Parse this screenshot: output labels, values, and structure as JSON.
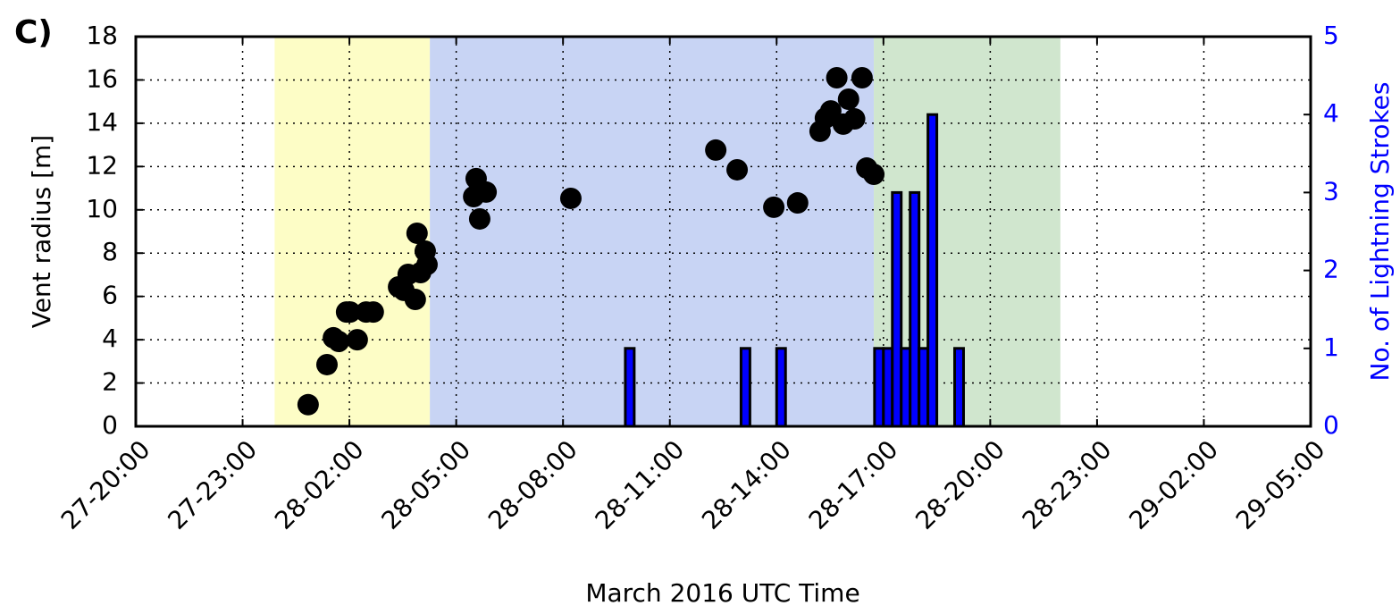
{
  "chart_data": {
    "type": "scatter",
    "panel_label": "C)",
    "xlabel": "March 2016 UTC Time",
    "ylabel": "Vent radius [m]",
    "y2label": "No. of Lightning Strokes",
    "xlim": [
      20,
      53
    ],
    "xticks": [
      {
        "value": 20,
        "label": "27-20:00"
      },
      {
        "value": 23,
        "label": "27-23:00"
      },
      {
        "value": 26,
        "label": "28-02:00"
      },
      {
        "value": 29,
        "label": "28-05:00"
      },
      {
        "value": 32,
        "label": "28-08:00"
      },
      {
        "value": 35,
        "label": "28-11:00"
      },
      {
        "value": 38,
        "label": "28-14:00"
      },
      {
        "value": 41,
        "label": "28-17:00"
      },
      {
        "value": 44,
        "label": "28-20:00"
      },
      {
        "value": 47,
        "label": "28-23:00"
      },
      {
        "value": 50,
        "label": "29-02:00"
      },
      {
        "value": 53,
        "label": "29-05:00"
      }
    ],
    "ylim": [
      0,
      18
    ],
    "yticks": [
      0,
      2,
      4,
      6,
      8,
      10,
      12,
      14,
      16,
      18
    ],
    "y2lim": [
      0,
      5
    ],
    "y2ticks": [
      0,
      1,
      2,
      3,
      4,
      5
    ],
    "y2color": "#0000ff",
    "grid": true,
    "spans": [
      {
        "start": 23.9,
        "end": 28.26,
        "color": "#fdfdc6"
      },
      {
        "start": 28.26,
        "end": 40.73,
        "color": "#c8d4f4"
      },
      {
        "start": 40.73,
        "end": 45.97,
        "color": "#d0e6ce"
      }
    ],
    "series": [
      {
        "type": "scatter",
        "color": "#000000",
        "x": [
          24.84,
          25.37,
          25.55,
          25.7,
          25.92,
          26.02,
          26.22,
          26.47,
          26.67,
          27.38,
          27.53,
          27.65,
          27.85,
          28.0,
          28.13,
          28.18,
          27.9,
          29.56,
          29.49,
          29.84,
          29.66,
          32.22,
          36.29,
          36.89,
          37.92,
          38.59,
          39.22,
          39.37,
          39.52,
          39.69,
          39.87,
          40.02,
          40.19,
          40.4,
          40.53,
          40.73
        ],
        "values": [
          1.0,
          2.85,
          4.09,
          3.92,
          5.28,
          5.28,
          4.0,
          5.28,
          5.28,
          6.44,
          6.28,
          7.02,
          5.86,
          7.1,
          8.09,
          7.47,
          8.92,
          11.44,
          10.61,
          10.82,
          9.58,
          10.53,
          12.76,
          11.85,
          10.12,
          10.32,
          13.63,
          14.24,
          14.57,
          16.1,
          13.96,
          15.11,
          14.2,
          16.1,
          11.93,
          11.64
        ]
      },
      {
        "type": "bar",
        "axis": "y2",
        "color": "#0000ff",
        "width": 0.25,
        "x": [
          33.75,
          37.0,
          38.0,
          40.75,
          41.0,
          41.25,
          41.5,
          41.75,
          42.0,
          42.25,
          43.0
        ],
        "values": [
          1,
          1,
          1,
          1,
          1,
          3,
          1,
          3,
          1,
          4,
          1
        ]
      }
    ]
  }
}
